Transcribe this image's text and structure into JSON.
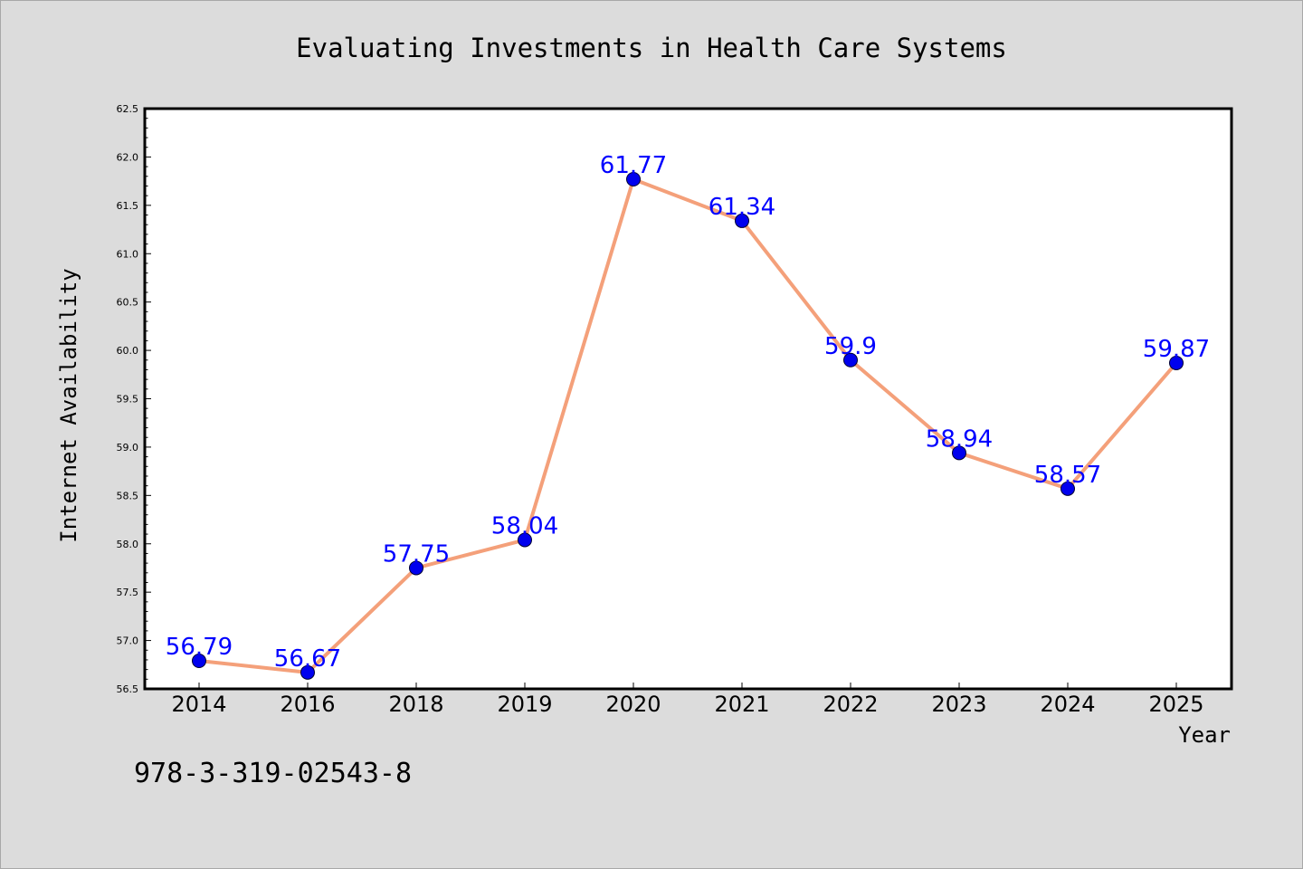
{
  "chart_data": {
    "type": "line",
    "title": "Evaluating Investments in Health Care Systems",
    "xlabel": "Year",
    "ylabel": "Internet Availability",
    "categories": [
      "2014",
      "2016",
      "2018",
      "2019",
      "2020",
      "2021",
      "2022",
      "2023",
      "2024",
      "2025"
    ],
    "series": [
      {
        "values": [
          56.79,
          56.67,
          57.75,
          58.04,
          61.77,
          61.34,
          59.9,
          58.94,
          58.57,
          59.87
        ]
      }
    ],
    "data_labels": [
      "56.79",
      "56.67",
      "57.75",
      "58.04",
      "61.77",
      "61.34",
      "59.9",
      "58.94",
      "58.57",
      "59.87"
    ],
    "ylim": [
      56.5,
      62.5
    ],
    "yticks": [
      "56.5",
      "57.0",
      "57.5",
      "58.0",
      "58.5",
      "59.0",
      "59.5",
      "60.0",
      "60.5",
      "61.0",
      "61.5",
      "62.0",
      "62.5"
    ],
    "grid": false,
    "line_color": "#f4a07a",
    "marker_color": "#0000ee",
    "label_color": "#0000ff"
  },
  "footer": {
    "isbn": "978-3-319-02543-8"
  }
}
